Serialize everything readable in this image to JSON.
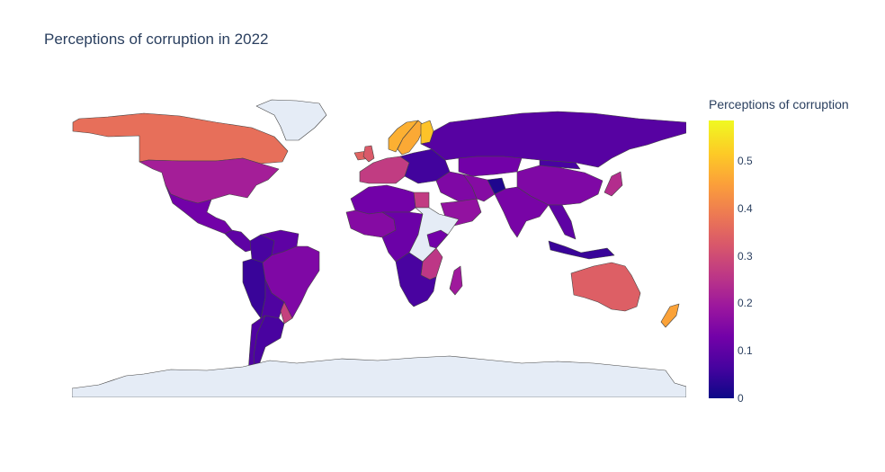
{
  "title": "Perceptions of corruption in 2022",
  "colorbar": {
    "title": "Perceptions of corruption",
    "range": [
      0,
      0.585
    ],
    "ticks": [
      "0",
      "0.1",
      "0.2",
      "0.3",
      "0.4",
      "0.5"
    ],
    "colorscale": "plasma",
    "colors": [
      "#0d0887",
      "#46039f",
      "#7201a8",
      "#9c179e",
      "#bd3786",
      "#d8576b",
      "#ed7953",
      "#fb9f3a",
      "#fdca26",
      "#f0f921"
    ]
  },
  "map": {
    "projection": "equirectangular",
    "no_data_color": "#e5ecf6",
    "border_color": "#444444"
  },
  "regions": [
    {
      "name": "Canada",
      "value": 0.37
    },
    {
      "name": "Greenland",
      "value": null
    },
    {
      "name": "United States",
      "value": 0.21
    },
    {
      "name": "Mexico",
      "value": 0.13
    },
    {
      "name": "Central America",
      "value": 0.1
    },
    {
      "name": "Colombia",
      "value": 0.07
    },
    {
      "name": "Venezuela",
      "value": 0.1
    },
    {
      "name": "Peru",
      "value": 0.05
    },
    {
      "name": "Brazil",
      "value": 0.15
    },
    {
      "name": "Bolivia",
      "value": 0.08
    },
    {
      "name": "Uruguay",
      "value": 0.28
    },
    {
      "name": "Argentina",
      "value": 0.07
    },
    {
      "name": "Chile",
      "value": 0.08
    },
    {
      "name": "Iceland",
      "value": 0.35
    },
    {
      "name": "Norway",
      "value": 0.48
    },
    {
      "name": "Sweden",
      "value": 0.47
    },
    {
      "name": "Finland",
      "value": 0.51
    },
    {
      "name": "United Kingdom",
      "value": 0.33
    },
    {
      "name": "Western Europe",
      "value": 0.27
    },
    {
      "name": "Eastern Europe",
      "value": 0.06
    },
    {
      "name": "Russia",
      "value": 0.09
    },
    {
      "name": "Kazakhstan",
      "value": 0.13
    },
    {
      "name": "Middle East",
      "value": 0.15
    },
    {
      "name": "Saudi Arabia",
      "value": 0.18
    },
    {
      "name": "Egypt",
      "value": 0.27
    },
    {
      "name": "Iran",
      "value": 0.16
    },
    {
      "name": "Afghanistan",
      "value": 0.02
    },
    {
      "name": "India",
      "value": 0.14
    },
    {
      "name": "China",
      "value": 0.15
    },
    {
      "name": "Mongolia",
      "value": 0.07
    },
    {
      "name": "Japan",
      "value": 0.24
    },
    {
      "name": "Southeast Asia",
      "value": 0.1
    },
    {
      "name": "Indonesia",
      "value": 0.05
    },
    {
      "name": "Australia",
      "value": 0.34
    },
    {
      "name": "New Zealand",
      "value": 0.46
    },
    {
      "name": "North Africa",
      "value": 0.13
    },
    {
      "name": "West Africa",
      "value": 0.16
    },
    {
      "name": "Central Africa",
      "value": 0.12
    },
    {
      "name": "Horn of Africa",
      "value": null
    },
    {
      "name": "East Africa",
      "value": 0.13
    },
    {
      "name": "Tanzania",
      "value": 0.26
    },
    {
      "name": "Madagascar",
      "value": 0.2
    },
    {
      "name": "Southern Africa",
      "value": 0.07
    },
    {
      "name": "Antarctica",
      "value": null
    }
  ]
}
